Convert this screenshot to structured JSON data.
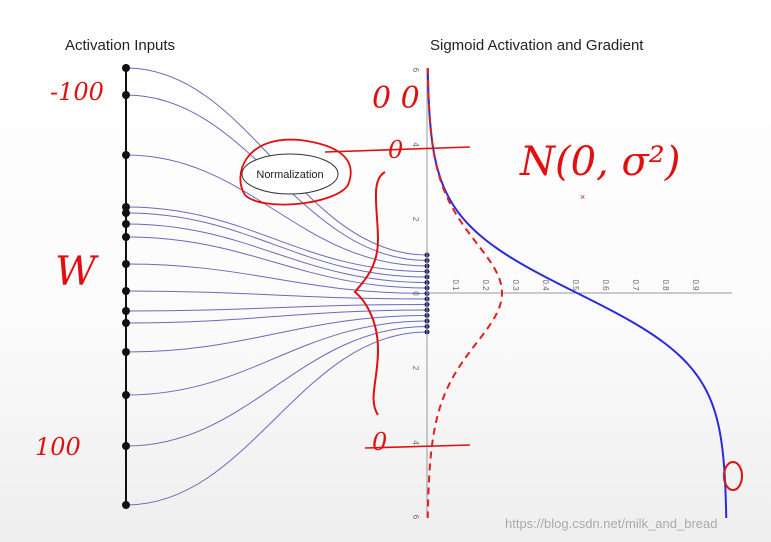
{
  "labels": {
    "left_title": "Activation Inputs",
    "right_title": "Sigmoid Activation and Gradient",
    "normalization": "Normalization"
  },
  "x_axis_ticks": [
    "0.1",
    "0.2",
    "0.3",
    "0.4",
    "0.5",
    "0.6",
    "0.7",
    "0.8",
    "0.9"
  ],
  "y_axis_ticks": [
    "6",
    "4",
    "2",
    "0",
    "2",
    "4",
    "6"
  ],
  "annotations": {
    "minus_100": "-100",
    "w": "W",
    "plus_100": "100",
    "top_zero": "0 0",
    "upper_zero": "0",
    "lower_zero": "0",
    "distribution": "N(0, σ²)",
    "bottom_zero": "0"
  },
  "watermark": "https://blog.csdn.net/milk_and_bread"
}
